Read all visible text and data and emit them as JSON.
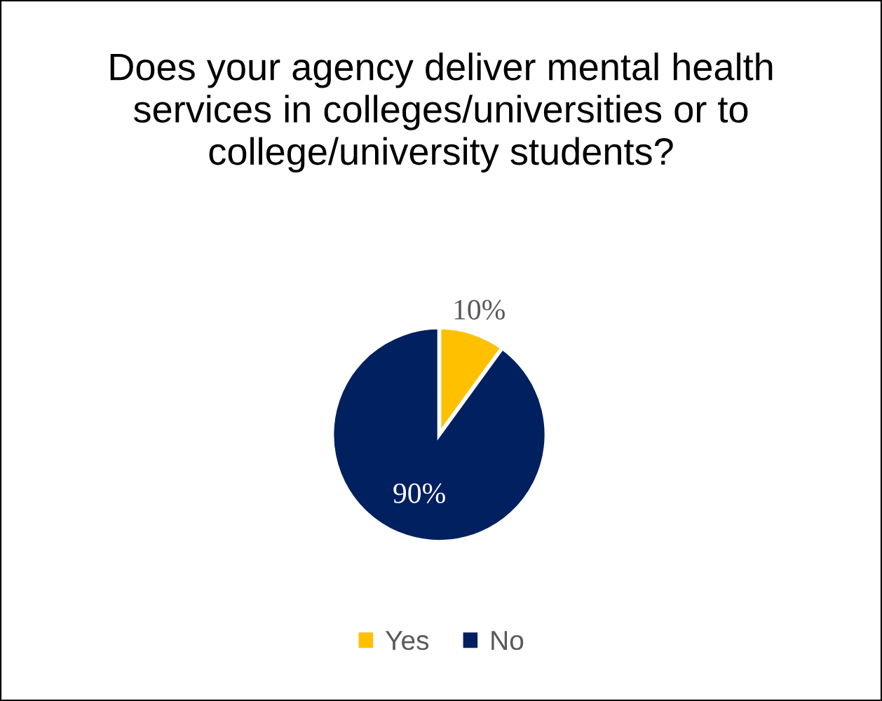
{
  "chart_data": {
    "type": "pie",
    "title": "Does your agency deliver mental health services in colleges/universities or to college/university students?",
    "categories": [
      "Yes",
      "No"
    ],
    "values": [
      10,
      90
    ],
    "colors": [
      "#ffc000",
      "#002060"
    ],
    "value_labels": [
      "10%",
      "90%"
    ],
    "legend": "bottom"
  }
}
